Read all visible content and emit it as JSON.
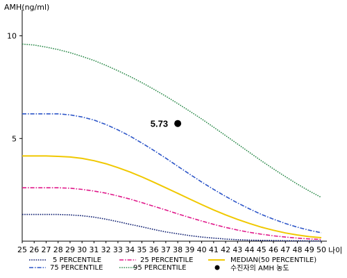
{
  "chart_data": {
    "type": "line",
    "ylabel": "AMH(ng/ml)",
    "xlabel": "나이",
    "x": [
      25,
      26,
      27,
      28,
      29,
      30,
      31,
      32,
      33,
      34,
      35,
      36,
      37,
      38,
      39,
      40,
      41,
      42,
      43,
      44,
      45,
      46,
      47,
      48,
      49,
      50
    ],
    "xlim": [
      25,
      50
    ],
    "ylim": [
      0,
      11
    ],
    "y_ticks": [
      5,
      10
    ],
    "grid": false,
    "series": [
      {
        "name": "5 PERCENTILE",
        "color": "#0a1a6e",
        "style": "dotted",
        "values": [
          1.3,
          1.3,
          1.3,
          1.3,
          1.28,
          1.24,
          1.17,
          1.07,
          0.95,
          0.82,
          0.7,
          0.57,
          0.45,
          0.36,
          0.27,
          0.2,
          0.15,
          0.1,
          0.07,
          0.05,
          0.04,
          0.03,
          0.02,
          0.02,
          0.01,
          0.01
        ]
      },
      {
        "name": "25 PERCENTILE",
        "color": "#e0188a",
        "style": "dashdot",
        "values": [
          2.6,
          2.6,
          2.6,
          2.6,
          2.58,
          2.52,
          2.44,
          2.34,
          2.2,
          2.05,
          1.88,
          1.7,
          1.52,
          1.33,
          1.15,
          0.98,
          0.82,
          0.67,
          0.54,
          0.43,
          0.34,
          0.26,
          0.2,
          0.15,
          0.11,
          0.08
        ]
      },
      {
        "name": "MEDIAN(50 PERCENTILE)",
        "color": "#f0c800",
        "style": "solid",
        "values": [
          4.15,
          4.15,
          4.15,
          4.13,
          4.1,
          4.03,
          3.92,
          3.77,
          3.58,
          3.37,
          3.13,
          2.87,
          2.6,
          2.33,
          2.05,
          1.78,
          1.52,
          1.28,
          1.06,
          0.86,
          0.68,
          0.53,
          0.4,
          0.3,
          0.22,
          0.17
        ]
      },
      {
        "name": "75 PERCENTILE",
        "color": "#2c55c8",
        "style": "dashdot",
        "values": [
          6.2,
          6.2,
          6.2,
          6.2,
          6.15,
          6.05,
          5.9,
          5.68,
          5.42,
          5.12,
          4.78,
          4.42,
          4.04,
          3.65,
          3.26,
          2.88,
          2.52,
          2.18,
          1.86,
          1.57,
          1.3,
          1.07,
          0.86,
          0.68,
          0.53,
          0.41
        ]
      },
      {
        "name": "95 PERCENTILE",
        "color": "#2e8b4c",
        "style": "dotted",
        "values": [
          9.6,
          9.55,
          9.45,
          9.33,
          9.18,
          9.0,
          8.8,
          8.56,
          8.3,
          8.02,
          7.72,
          7.4,
          7.06,
          6.7,
          6.33,
          5.95,
          5.55,
          5.14,
          4.73,
          4.32,
          3.91,
          3.52,
          3.14,
          2.78,
          2.44,
          2.13
        ]
      }
    ],
    "highlight": {
      "name": "수진자의 AMH 농도",
      "x": 38,
      "y": 5.73,
      "label": "5.73",
      "color": "#000000"
    },
    "legend": "bottom"
  }
}
